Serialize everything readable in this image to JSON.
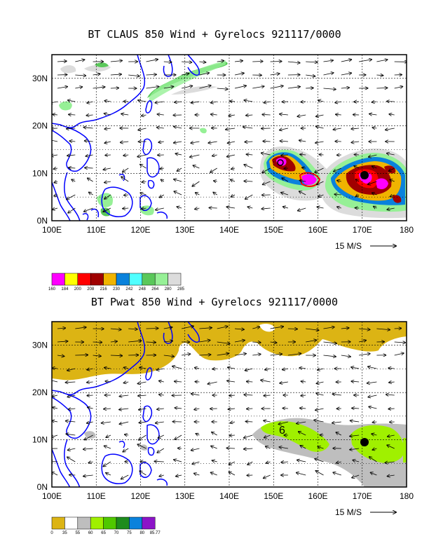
{
  "panel1": {
    "title": "BT CLAUS 850 Wind + Gyrelocs 921117/0000",
    "lat_labels": [
      "30N",
      "20N",
      "10N",
      "0N"
    ],
    "lon_labels": [
      "100E",
      "110E",
      "120E",
      "130E",
      "140E",
      "150E",
      "160E",
      "170E",
      "180"
    ],
    "ref_vector_label": "15 M/S",
    "colorbar": {
      "colors": [
        "#ff00ff",
        "#ffff00",
        "#ff0000",
        "#a00000",
        "#f0b400",
        "#0a82dc",
        "#50ffff",
        "#5ac85a",
        "#96f096",
        "#dcdcdc"
      ],
      "labels": [
        "160",
        "184",
        "200",
        "208",
        "216",
        "230",
        "242",
        "248",
        "264",
        "280",
        "285"
      ]
    }
  },
  "panel2": {
    "title": "BT Pwat 850 Wind + Gyrelocs 921117/0000",
    "lat_labels": [
      "30N",
      "20N",
      "10N",
      "0N"
    ],
    "lon_labels": [
      "100E",
      "110E",
      "120E",
      "130E",
      "140E",
      "150E",
      "160E",
      "170E",
      "180"
    ],
    "ref_vector_label": "15 M/S",
    "gyre_markers": [
      "6",
      "6"
    ],
    "colorbar": {
      "colors": [
        "#dcb414",
        "#ffffff",
        "#bebebe",
        "#a0f000",
        "#50c800",
        "#1e8c1e",
        "#0a82dc",
        "#8c14c8"
      ],
      "labels": [
        "0",
        "35",
        "55",
        "60",
        "65",
        "70",
        "75",
        "80",
        "85.77"
      ]
    }
  },
  "colors": {
    "coastline": "#0000ff"
  }
}
